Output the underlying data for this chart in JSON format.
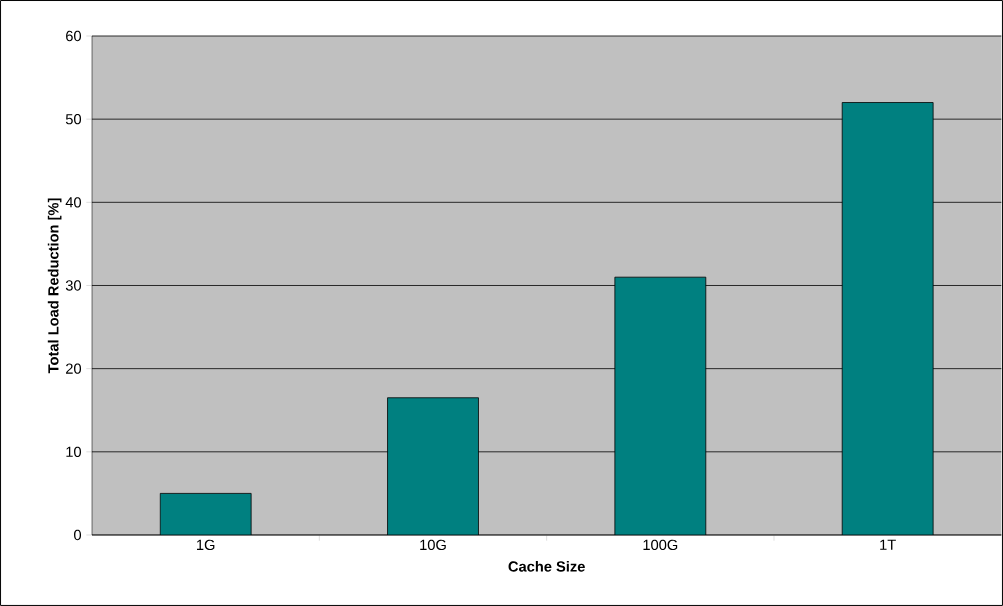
{
  "chart_data": {
    "type": "bar",
    "xlabel": "Cache Size",
    "ylabel": "Total Load Reduction [%]",
    "categories": [
      "1G",
      "10G",
      "100G",
      "1T"
    ],
    "values": [
      5,
      16.5,
      31,
      52
    ],
    "color": "#008080",
    "ylim": [
      0,
      60
    ],
    "yticks": [
      0,
      10,
      20,
      30,
      40,
      50,
      60
    ],
    "grid": "y"
  }
}
